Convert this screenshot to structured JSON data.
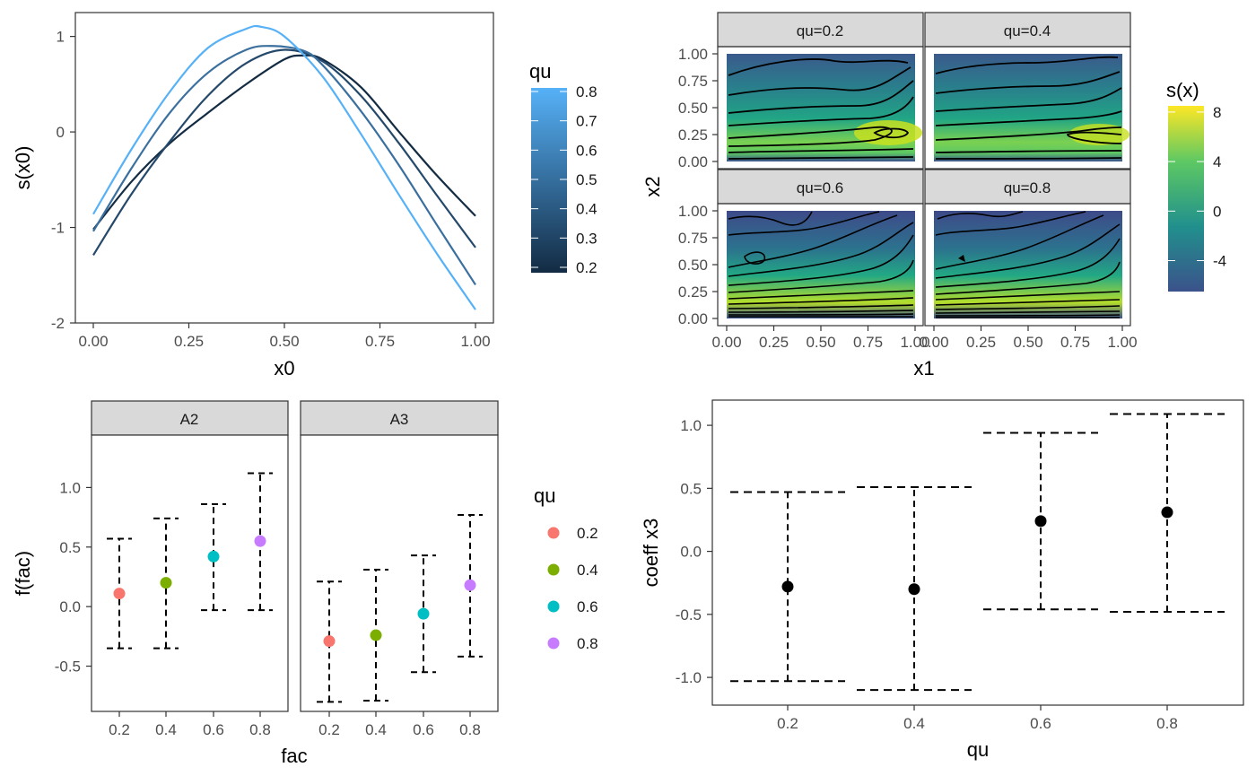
{
  "chart_data": [
    {
      "type": "line",
      "xlabel": "x0",
      "ylabel": "s(x0)",
      "xlim": [
        0,
        1
      ],
      "ylim": [
        -2,
        1.25
      ],
      "x_ticks": [
        "0.00",
        "0.25",
        "0.50",
        "0.75",
        "1.00"
      ],
      "y_ticks": [
        "-2",
        "-1",
        "0",
        "1"
      ],
      "legend": {
        "title": "qu",
        "type": "colorbar",
        "ticks": [
          "0.2",
          "0.3",
          "0.4",
          "0.5",
          "0.6",
          "0.7",
          "0.8"
        ],
        "range": [
          0.2,
          0.8
        ],
        "colors": [
          "#132B43",
          "#56B1F7"
        ]
      },
      "series": [
        {
          "qu": 0.2,
          "color": "#132B43",
          "x": [
            0,
            0.1,
            0.2,
            0.3,
            0.4,
            0.5,
            0.55,
            0.6,
            0.7,
            0.8,
            0.9,
            1.0
          ],
          "y": [
            -1.02,
            -0.52,
            -0.12,
            0.2,
            0.5,
            0.76,
            0.8,
            0.76,
            0.47,
            0.0,
            -0.46,
            -0.88
          ]
        },
        {
          "qu": 0.4,
          "color": "#25496B",
          "x": [
            0,
            0.1,
            0.2,
            0.3,
            0.4,
            0.5,
            0.6,
            0.7,
            0.8,
            0.9,
            1.0
          ],
          "y": [
            -1.29,
            -0.65,
            -0.1,
            0.38,
            0.72,
            0.86,
            0.74,
            0.38,
            -0.12,
            -0.67,
            -1.21
          ]
        },
        {
          "qu": 0.6,
          "color": "#3A6F9E",
          "x": [
            0,
            0.1,
            0.2,
            0.3,
            0.4,
            0.47,
            0.55,
            0.6,
            0.7,
            0.8,
            0.9,
            1.0
          ],
          "y": [
            -1.04,
            -0.38,
            0.2,
            0.62,
            0.86,
            0.9,
            0.85,
            0.7,
            0.22,
            -0.35,
            -0.98,
            -1.6
          ]
        },
        {
          "qu": 0.8,
          "color": "#56B1F7",
          "x": [
            0,
            0.1,
            0.2,
            0.3,
            0.4,
            0.44,
            0.5,
            0.6,
            0.7,
            0.8,
            0.9,
            1.0
          ],
          "y": [
            -0.86,
            -0.18,
            0.42,
            0.88,
            1.08,
            1.1,
            1.0,
            0.58,
            -0.02,
            -0.66,
            -1.28,
            -1.86
          ]
        }
      ]
    },
    {
      "type": "heatmap",
      "xlabel": "x1",
      "ylabel": "x2",
      "x_ticks": [
        "0.00",
        "0.25",
        "0.50",
        "0.75",
        "1.00"
      ],
      "y_ticks": [
        "0.00",
        "0.25",
        "0.50",
        "0.75",
        "1.00"
      ],
      "panels": [
        "qu=0.2",
        "qu=0.4",
        "qu=0.6",
        "qu=0.8"
      ],
      "legend": {
        "title": "s(x)",
        "type": "colorbar",
        "ticks": [
          "8",
          "4",
          "0",
          "-4"
        ],
        "range": [
          -6.5,
          8.5
        ],
        "colors": [
          "#3B528B",
          "#21908D",
          "#5DC863",
          "#FDE725"
        ]
      }
    },
    {
      "type": "scatter",
      "xlabel": "fac",
      "ylabel": "f(fac)",
      "ylim": [
        -0.88,
        1.44
      ],
      "y_ticks": [
        "-0.5",
        "0.0",
        "0.5",
        "1.0"
      ],
      "x_ticks": [
        "0.2",
        "0.4",
        "0.6",
        "0.8"
      ],
      "legend": {
        "title": "qu",
        "entries": [
          {
            "label": "0.2",
            "color": "#F8766D"
          },
          {
            "label": "0.4",
            "color": "#7CAE00"
          },
          {
            "label": "0.6",
            "color": "#00BFC4"
          },
          {
            "label": "0.8",
            "color": "#C77CFF"
          }
        ]
      },
      "panels": [
        {
          "strip": "A2",
          "points": [
            {
              "x": "0.2",
              "y": 0.11,
              "lo": -0.35,
              "hi": 0.57
            },
            {
              "x": "0.4",
              "y": 0.2,
              "lo": -0.35,
              "hi": 0.74
            },
            {
              "x": "0.6",
              "y": 0.42,
              "lo": -0.03,
              "hi": 0.86
            },
            {
              "x": "0.8",
              "y": 0.55,
              "lo": -0.03,
              "hi": 1.12
            }
          ]
        },
        {
          "strip": "A3",
          "points": [
            {
              "x": "0.2",
              "y": -0.29,
              "lo": -0.8,
              "hi": 0.21
            },
            {
              "x": "0.4",
              "y": -0.24,
              "lo": -0.79,
              "hi": 0.31
            },
            {
              "x": "0.6",
              "y": -0.06,
              "lo": -0.55,
              "hi": 0.43
            },
            {
              "x": "0.8",
              "y": 0.18,
              "lo": -0.42,
              "hi": 0.77
            }
          ]
        }
      ]
    },
    {
      "type": "scatter",
      "xlabel": "qu",
      "ylabel": "coeff x3",
      "ylim": [
        -1.22,
        1.2
      ],
      "y_ticks": [
        "-1.0",
        "-0.5",
        "0.0",
        "0.5",
        "1.0"
      ],
      "x_ticks": [
        "0.2",
        "0.4",
        "0.6",
        "0.8"
      ],
      "points": [
        {
          "x": "0.2",
          "y": -0.28,
          "lo": -1.03,
          "hi": 0.47
        },
        {
          "x": "0.4",
          "y": -0.3,
          "lo": -1.1,
          "hi": 0.51
        },
        {
          "x": "0.6",
          "y": 0.24,
          "lo": -0.46,
          "hi": 0.94
        },
        {
          "x": "0.8",
          "y": 0.31,
          "lo": -0.48,
          "hi": 1.09
        }
      ]
    }
  ]
}
